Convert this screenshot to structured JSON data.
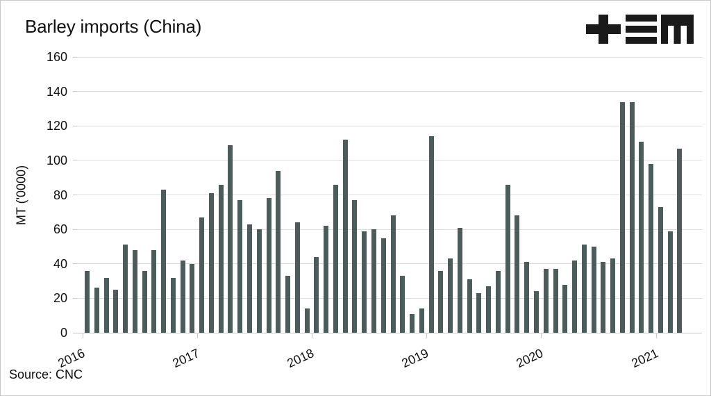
{
  "title": "Barley imports (China)",
  "logo_alt": "+≡M",
  "source": "Source: CNC",
  "colors": {
    "bar": "#4c5c5a",
    "grid": "#dcdcdc",
    "text": "#111111",
    "logo": "#1a1a1a"
  },
  "chart_data": {
    "type": "bar",
    "title": "Barley imports (China)",
    "xlabel": "",
    "ylabel": "MT ('0000)",
    "ylim": [
      0,
      160
    ],
    "yticks": [
      0,
      20,
      40,
      60,
      80,
      100,
      120,
      140,
      160
    ],
    "grid": "horizontal",
    "legend": "none",
    "bar_color": "#4c5c5a",
    "source": "Source: CNC",
    "series": [
      {
        "name": "2016",
        "values": [
          36,
          26,
          32,
          25,
          51,
          48,
          36,
          48,
          83,
          32,
          42,
          40
        ]
      },
      {
        "name": "2017",
        "values": [
          67,
          81,
          86,
          109,
          77,
          63,
          60,
          78,
          94,
          33,
          64,
          14
        ]
      },
      {
        "name": "2018",
        "values": [
          44,
          62,
          86,
          112,
          77,
          59,
          60,
          55,
          68,
          33,
          11,
          14
        ]
      },
      {
        "name": "2019",
        "values": [
          114,
          36,
          43,
          61,
          31,
          23,
          27,
          36,
          86,
          68,
          41,
          24
        ]
      },
      {
        "name": "2020",
        "values": [
          37,
          37,
          28,
          42,
          51,
          50,
          41,
          43,
          134,
          134,
          111,
          98
        ]
      },
      {
        "name": "2021",
        "values": [
          73,
          59,
          107
        ]
      }
    ]
  }
}
